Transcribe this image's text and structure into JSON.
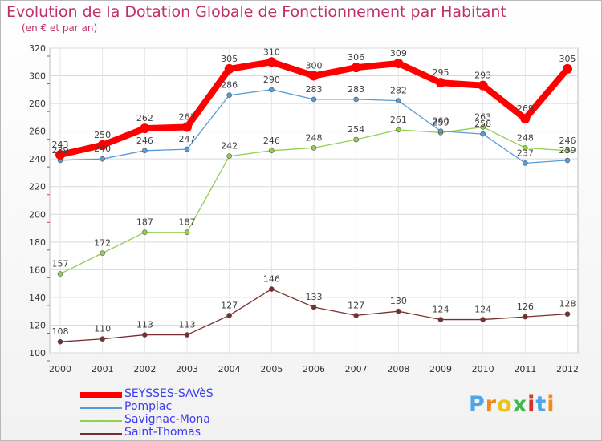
{
  "title": "Evolution de la Dotation Globale de Fonctionnement par Habitant",
  "subtitle": "(en € et par an)",
  "logo": {
    "text": "Prox•iti",
    "letters": [
      "P",
      "r",
      "o",
      "x",
      "i",
      "t",
      "i"
    ]
  },
  "chart_data": {
    "type": "line",
    "x": [
      "2000",
      "2001",
      "2002",
      "2003",
      "2004",
      "2005",
      "2006",
      "2007",
      "2008",
      "2009",
      "2010",
      "2011",
      "2012"
    ],
    "ylim": [
      100,
      320
    ],
    "yticks": [
      "100",
      "120",
      "140",
      "160",
      "180",
      "200",
      "220",
      "240",
      "260",
      "280",
      "300",
      "320"
    ],
    "grid": true,
    "legend_position": "bottom-left",
    "series": [
      {
        "name": "SEYSSES-SAVèS",
        "color": "#ff0000",
        "values": [
          243,
          250,
          262,
          263,
          305,
          310,
          300,
          306,
          309,
          295,
          293,
          269,
          305
        ],
        "labels": [
          "243",
          "250",
          "262",
          "263",
          "305",
          "310",
          "300",
          "306",
          "309",
          "295",
          "293",
          "269",
          "305"
        ]
      },
      {
        "name": "Pompiac",
        "color": "#5b9bd5",
        "values": [
          239,
          240,
          246,
          247,
          286,
          290,
          283,
          283,
          282,
          260,
          258,
          237,
          239
        ],
        "labels": [
          "239",
          "240",
          "246",
          "247",
          "286",
          "290",
          "283",
          "283",
          "282",
          "260",
          "258",
          "237",
          "239"
        ]
      },
      {
        "name": "Savignac-Mona",
        "color": "#92d050",
        "values": [
          157,
          172,
          187,
          187,
          242,
          246,
          248,
          254,
          261,
          259,
          263,
          248,
          246
        ],
        "labels": [
          "157",
          "172",
          "187",
          "187",
          "242",
          "246",
          "248",
          "254",
          "261",
          "259",
          "263",
          "248",
          "246"
        ]
      },
      {
        "name": "Saint-Thomas",
        "color": "#7a2e2e",
        "values": [
          108,
          110,
          113,
          113,
          127,
          146,
          133,
          127,
          130,
          124,
          124,
          126,
          128
        ],
        "labels": [
          "108",
          "110",
          "113",
          "113",
          "127",
          "146",
          "133",
          "127",
          "130",
          "124",
          "124",
          "126",
          "128"
        ]
      }
    ]
  }
}
